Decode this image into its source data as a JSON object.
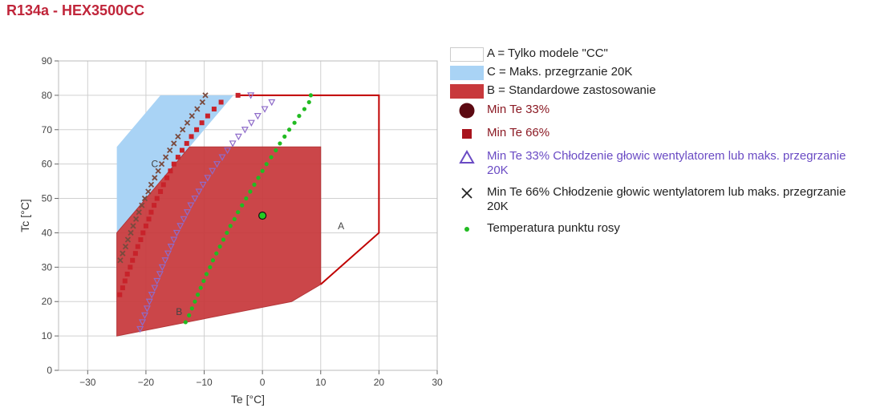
{
  "title": "R134a - HEX3500CC",
  "chart_data": {
    "type": "scatter",
    "xlabel": "Te [°C]",
    "ylabel": "Tc [°C]",
    "xlim": [
      -35,
      30
    ],
    "ylim": [
      0,
      90
    ],
    "xticks": [
      -30,
      -20,
      -10,
      0,
      10,
      20,
      30
    ],
    "yticks": [
      0,
      10,
      20,
      30,
      40,
      50,
      60,
      70,
      80,
      90
    ],
    "xtick_labels": [
      "−30",
      "−20",
      "−10",
      "0",
      "10",
      "20",
      "30"
    ],
    "ytick_labels": [
      "0",
      "10",
      "20",
      "30",
      "40",
      "50",
      "60",
      "70",
      "80",
      "90"
    ],
    "grid": true,
    "legend_position": "right",
    "regions": [
      {
        "name": "A = Tylko modele \"CC\"",
        "label": "A",
        "label_at": [
          13.5,
          42
        ],
        "fill": "none",
        "stroke": "#c00000",
        "polygon": [
          [
            -4.5,
            80
          ],
          [
            20,
            80
          ],
          [
            20,
            40
          ],
          [
            10,
            25
          ]
        ]
      },
      {
        "name": "C = Maks. przegrzanie 20K",
        "label": "C",
        "label_at": [
          -18.5,
          60
        ],
        "fill": "#a9d3f5",
        "stroke": "none",
        "polygon": [
          [
            -25,
            40
          ],
          [
            -25,
            65
          ],
          [
            -17.5,
            80
          ],
          [
            -5,
            80
          ],
          [
            -12.5,
            65
          ]
        ]
      },
      {
        "name": "B = Standardowe zastosowanie",
        "label": "B",
        "label_at": [
          -14.3,
          17
        ],
        "fill": "#c8393c",
        "stroke": "#b02a2d",
        "polygon": [
          [
            -25,
            10
          ],
          [
            -25,
            40
          ],
          [
            -12.5,
            65
          ],
          [
            10,
            65
          ],
          [
            10,
            25
          ],
          [
            5,
            20
          ]
        ]
      }
    ],
    "series": [
      {
        "name": "Min Te 33%",
        "marker": "circle",
        "color": "#5c0a12",
        "points": [
          [
            0,
            45
          ]
        ]
      },
      {
        "name": "Min Te 66%",
        "marker": "square",
        "color": "#c8222a",
        "points": [
          [
            -24.5,
            22
          ],
          [
            -24,
            24
          ],
          [
            -23.6,
            26
          ],
          [
            -23.2,
            28
          ],
          [
            -22.7,
            30
          ],
          [
            -22.3,
            32
          ],
          [
            -21.8,
            34
          ],
          [
            -21.4,
            36
          ],
          [
            -20.9,
            38
          ],
          [
            -20.5,
            40
          ],
          [
            -20,
            42
          ],
          [
            -19.5,
            44
          ],
          [
            -19.1,
            46
          ],
          [
            -18.6,
            48
          ],
          [
            -18.1,
            50
          ],
          [
            -17.5,
            52
          ],
          [
            -17,
            54
          ],
          [
            -16.4,
            56
          ],
          [
            -15.8,
            58
          ],
          [
            -15.2,
            60
          ],
          [
            -14.5,
            62
          ],
          [
            -13.8,
            64
          ],
          [
            -13,
            66
          ],
          [
            -12.2,
            68
          ],
          [
            -11.3,
            70
          ],
          [
            -10.4,
            72
          ],
          [
            -9.4,
            74
          ],
          [
            -8.3,
            76
          ],
          [
            -7.1,
            78
          ],
          [
            -4.2,
            80
          ]
        ]
      },
      {
        "name": "Min Te 33% Chłodzenie głowic wentylatorem lub maks. przegrzanie 20K",
        "marker": "triangle-down",
        "color": "#8e6bc9",
        "points": [
          [
            -21,
            12
          ],
          [
            -20.6,
            14
          ],
          [
            -20.2,
            16
          ],
          [
            -19.8,
            18
          ],
          [
            -19.4,
            20
          ],
          [
            -19,
            22
          ],
          [
            -18.5,
            24
          ],
          [
            -18.1,
            26
          ],
          [
            -17.6,
            28
          ],
          [
            -17.2,
            30
          ],
          [
            -16.7,
            32
          ],
          [
            -16.2,
            34
          ],
          [
            -15.7,
            36
          ],
          [
            -15.2,
            38
          ],
          [
            -14.7,
            40
          ],
          [
            -14.1,
            42
          ],
          [
            -13.5,
            44
          ],
          [
            -12.9,
            46
          ],
          [
            -12.3,
            48
          ],
          [
            -11.6,
            50
          ],
          [
            -10.9,
            52
          ],
          [
            -10.2,
            54
          ],
          [
            -9.4,
            56
          ],
          [
            -8.6,
            58
          ],
          [
            -7.8,
            60
          ],
          [
            -6.9,
            62
          ],
          [
            -6,
            64
          ],
          [
            -5.1,
            66
          ],
          [
            -4.1,
            68
          ],
          [
            -3,
            70
          ],
          [
            -1.9,
            72
          ],
          [
            -0.8,
            74
          ],
          [
            0.4,
            76
          ],
          [
            1.6,
            78
          ],
          [
            -2,
            80
          ]
        ]
      },
      {
        "name": "Min Te 66% Chłodzenie głowic wentylatorem lub maks. przegrzanie 20K",
        "marker": "x",
        "color": "#7a4a3e",
        "points": [
          [
            -24.4,
            32
          ],
          [
            -24,
            34
          ],
          [
            -23.5,
            36
          ],
          [
            -23.1,
            38
          ],
          [
            -22.6,
            40
          ],
          [
            -22.2,
            42
          ],
          [
            -21.7,
            44
          ],
          [
            -21.2,
            46
          ],
          [
            -20.7,
            48
          ],
          [
            -20.2,
            50
          ],
          [
            -19.6,
            52
          ],
          [
            -19.1,
            54
          ],
          [
            -18.5,
            56
          ],
          [
            -17.9,
            58
          ],
          [
            -17.3,
            60
          ],
          [
            -16.6,
            62
          ],
          [
            -15.9,
            64
          ],
          [
            -15.2,
            66
          ],
          [
            -14.5,
            68
          ],
          [
            -13.7,
            70
          ],
          [
            -12.9,
            72
          ],
          [
            -12.1,
            74
          ],
          [
            -11.2,
            76
          ],
          [
            -10.3,
            78
          ],
          [
            -9.8,
            80
          ]
        ]
      },
      {
        "name": "Temperatura punktu rosy",
        "marker": "dot",
        "color": "#22bb22",
        "points": [
          [
            -13.2,
            14
          ],
          [
            -12.6,
            16
          ],
          [
            -12.1,
            18
          ],
          [
            -11.6,
            20
          ],
          [
            -11.1,
            22
          ],
          [
            -10.6,
            24
          ],
          [
            -10.1,
            26
          ],
          [
            -9.6,
            28
          ],
          [
            -9,
            30
          ],
          [
            -8.5,
            32
          ],
          [
            -7.9,
            34
          ],
          [
            -7.3,
            36
          ],
          [
            -6.7,
            38
          ],
          [
            -6.1,
            40
          ],
          [
            -5.5,
            42
          ],
          [
            -4.8,
            44
          ],
          [
            -4.2,
            46
          ],
          [
            -3.5,
            48
          ],
          [
            -2.8,
            50
          ],
          [
            -2.1,
            52
          ],
          [
            -1.4,
            54
          ],
          [
            -0.7,
            56
          ],
          [
            0,
            58
          ],
          [
            0.7,
            60
          ],
          [
            1.5,
            62
          ],
          [
            2.3,
            64
          ],
          [
            3,
            66
          ],
          [
            3.8,
            68
          ],
          [
            4.6,
            70
          ],
          [
            5.5,
            72
          ],
          [
            6.3,
            74
          ],
          [
            7.2,
            76
          ],
          [
            8,
            78
          ],
          [
            8.3,
            80
          ]
        ]
      }
    ]
  },
  "legend": [
    {
      "kind": "box",
      "color": "#ffffff",
      "border": "#cccccc",
      "text": "A = Tylko modele \"CC\"",
      "text_color": "#222222"
    },
    {
      "kind": "box",
      "color": "#a9d3f5",
      "border": "#a9d3f5",
      "text": "C = Maks. przegrzanie 20K",
      "text_color": "#222222"
    },
    {
      "kind": "box",
      "color": "#c8393c",
      "border": "#c8393c",
      "text": "B = Standardowe zastosowanie",
      "text_color": "#222222"
    },
    {
      "kind": "circle",
      "color": "#5c0a12",
      "text": "Min Te 33%",
      "text_color": "#8b1a24"
    },
    {
      "kind": "square",
      "color": "#a8141d",
      "text": "Min Te 66%",
      "text_color": "#8b1a24"
    },
    {
      "kind": "triangle",
      "color": "#6a4bc4",
      "text": "Min Te 33% Chłodzenie głowic wentylatorem lub maks. przegrzanie 20K",
      "text_color": "#6a4bc4"
    },
    {
      "kind": "x",
      "color": "#222222",
      "text": "Min Te 66% Chłodzenie głowic wentylatorem lub maks. przegrzanie 20K",
      "text_color": "#222222"
    },
    {
      "kind": "dot",
      "color": "#22bb22",
      "text": "Temperatura punktu rosy",
      "text_color": "#222222"
    }
  ],
  "operating_point": {
    "x": 0,
    "y": 45,
    "color": "#22cc22"
  }
}
